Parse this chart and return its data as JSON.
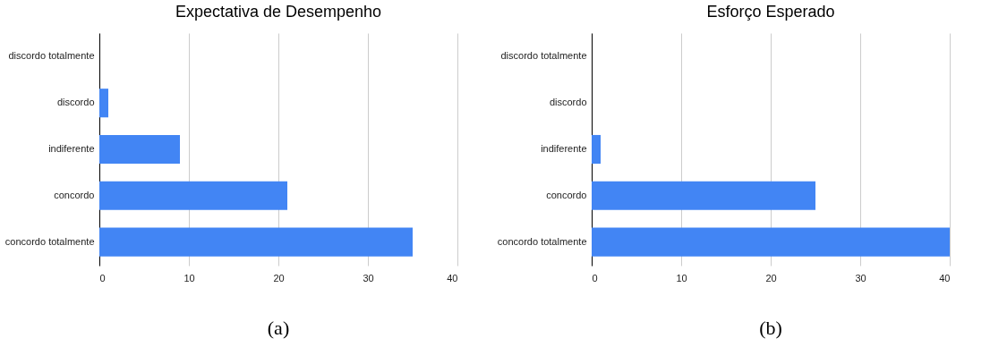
{
  "chart_data": [
    {
      "type": "bar",
      "orientation": "horizontal",
      "title": "Expectativa de Desempenho",
      "categories": [
        "discordo totalmente",
        "discordo",
        "indiferente",
        "concordo",
        "concordo totalmente"
      ],
      "values": [
        0,
        1,
        9,
        21,
        35
      ],
      "color": "#4285f4",
      "xlim": [
        0,
        40
      ],
      "xticks": [
        0,
        10,
        20,
        30,
        40
      ],
      "grid": "x",
      "annotations": [
        "(a)"
      ]
    },
    {
      "type": "bar",
      "orientation": "horizontal",
      "title": "Esforço Esperado",
      "categories": [
        "discordo totalmente",
        "discordo",
        "indiferente",
        "concordo",
        "concordo totalmente"
      ],
      "values": [
        0,
        0,
        1,
        25,
        40
      ],
      "color": "#4285f4",
      "xlim": [
        0,
        40
      ],
      "xticks": [
        0,
        10,
        20,
        30,
        40
      ],
      "grid": "x",
      "annotations": [
        "(b)"
      ]
    }
  ]
}
